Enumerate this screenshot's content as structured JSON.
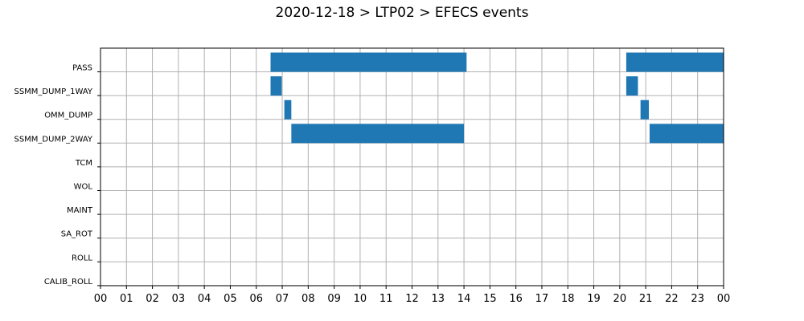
{
  "chart_data": {
    "type": "gantt",
    "title": "2020-12-18 > LTP02 > EFECS events",
    "xlabel": "",
    "ylabel": "",
    "x_tick_labels": [
      "00",
      "01",
      "02",
      "03",
      "04",
      "05",
      "06",
      "07",
      "08",
      "09",
      "10",
      "11",
      "12",
      "13",
      "14",
      "15",
      "16",
      "17",
      "18",
      "19",
      "20",
      "21",
      "22",
      "23",
      "00"
    ],
    "xlim_hours": [
      0,
      24
    ],
    "grid": true,
    "bar_color": "#1f77b4",
    "grid_color": "#b0b0b0",
    "categories": [
      "PASS",
      "SSMM_DUMP_1WAY",
      "OMM_DUMP",
      "SSMM_DUMP_2WAY",
      "TCM",
      "WOL",
      "MAINT",
      "SA_ROT",
      "ROLL",
      "CALIB_ROLL"
    ],
    "events": [
      {
        "category": "PASS",
        "start_hour": 6.55,
        "end_hour": 14.1
      },
      {
        "category": "PASS",
        "start_hour": 20.25,
        "end_hour": 24.0
      },
      {
        "category": "SSMM_DUMP_1WAY",
        "start_hour": 6.55,
        "end_hour": 6.98
      },
      {
        "category": "SSMM_DUMP_1WAY",
        "start_hour": 20.25,
        "end_hour": 20.7
      },
      {
        "category": "OMM_DUMP",
        "start_hour": 7.08,
        "end_hour": 7.35
      },
      {
        "category": "OMM_DUMP",
        "start_hour": 20.8,
        "end_hour": 21.12
      },
      {
        "category": "SSMM_DUMP_2WAY",
        "start_hour": 7.35,
        "end_hour": 14.0
      },
      {
        "category": "SSMM_DUMP_2WAY",
        "start_hour": 21.15,
        "end_hour": 24.0
      }
    ]
  }
}
